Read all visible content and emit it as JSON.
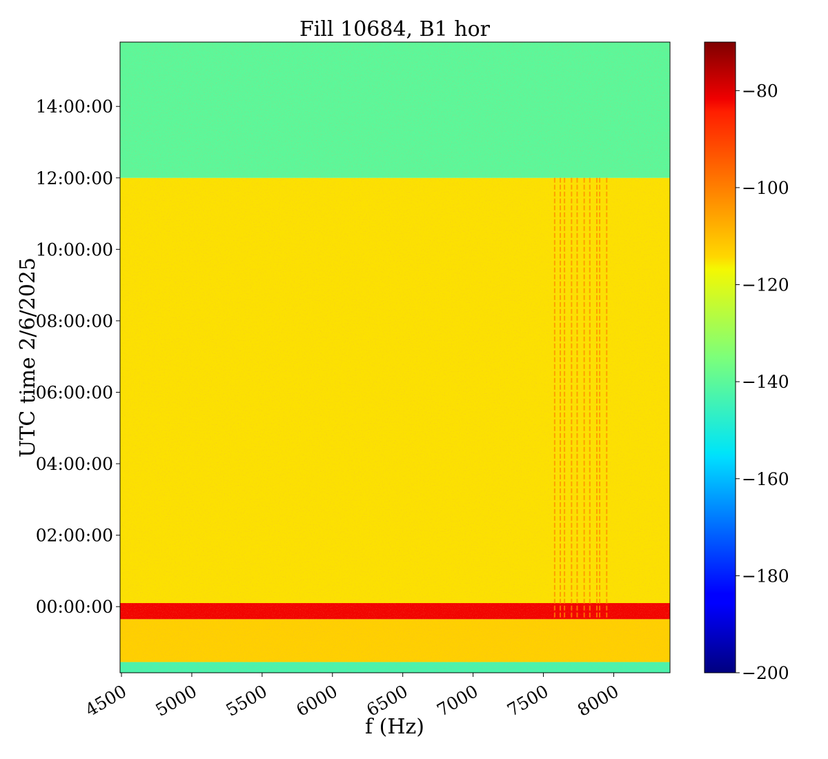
{
  "chart_data": {
    "type": "heatmap",
    "title": "Fill 10684, B1 hor",
    "xlabel": "f (Hz)",
    "ylabel": "UTC time 2/6/2025",
    "xlim": [
      4490,
      8400
    ],
    "x_ticks": [
      4500,
      5000,
      5500,
      6000,
      6500,
      7000,
      7500,
      8000
    ],
    "x_tick_labels": [
      "4500",
      "5000",
      "5500",
      "6000",
      "6500",
      "7000",
      "7500",
      "8000"
    ],
    "ylim_hours": [
      -1.85,
      15.8
    ],
    "y_ticks_hours": [
      0,
      2,
      4,
      6,
      8,
      10,
      12,
      14
    ],
    "y_tick_labels": [
      "00:00:00",
      "02:00:00",
      "04:00:00",
      "06:00:00",
      "08:00:00",
      "10:00:00",
      "12:00:00",
      "14:00:00"
    ],
    "colorbar": {
      "colormap": "jet",
      "vmin": -200,
      "vmax": -70,
      "ticks": [
        -200,
        -180,
        -160,
        -140,
        -120,
        -100,
        -80
      ],
      "tick_labels": [
        "−200",
        "−180",
        "−160",
        "−140",
        "−120",
        "−100",
        "−80"
      ]
    },
    "regions": [
      {
        "t_from": -1.85,
        "t_to": -1.55,
        "level": -143
      },
      {
        "t_from": -1.55,
        "t_to": -0.35,
        "level": -113
      },
      {
        "t_from": -0.35,
        "t_to": 0.1,
        "level": -82
      },
      {
        "t_from": 0.1,
        "t_to": 12.0,
        "level": -115
      },
      {
        "t_from": 12.0,
        "t_to": 15.8,
        "level": -140
      }
    ],
    "spectral_lines_hz": [
      7580,
      7620,
      7650,
      7700,
      7740,
      7790,
      7830,
      7880,
      7900,
      7950
    ]
  }
}
